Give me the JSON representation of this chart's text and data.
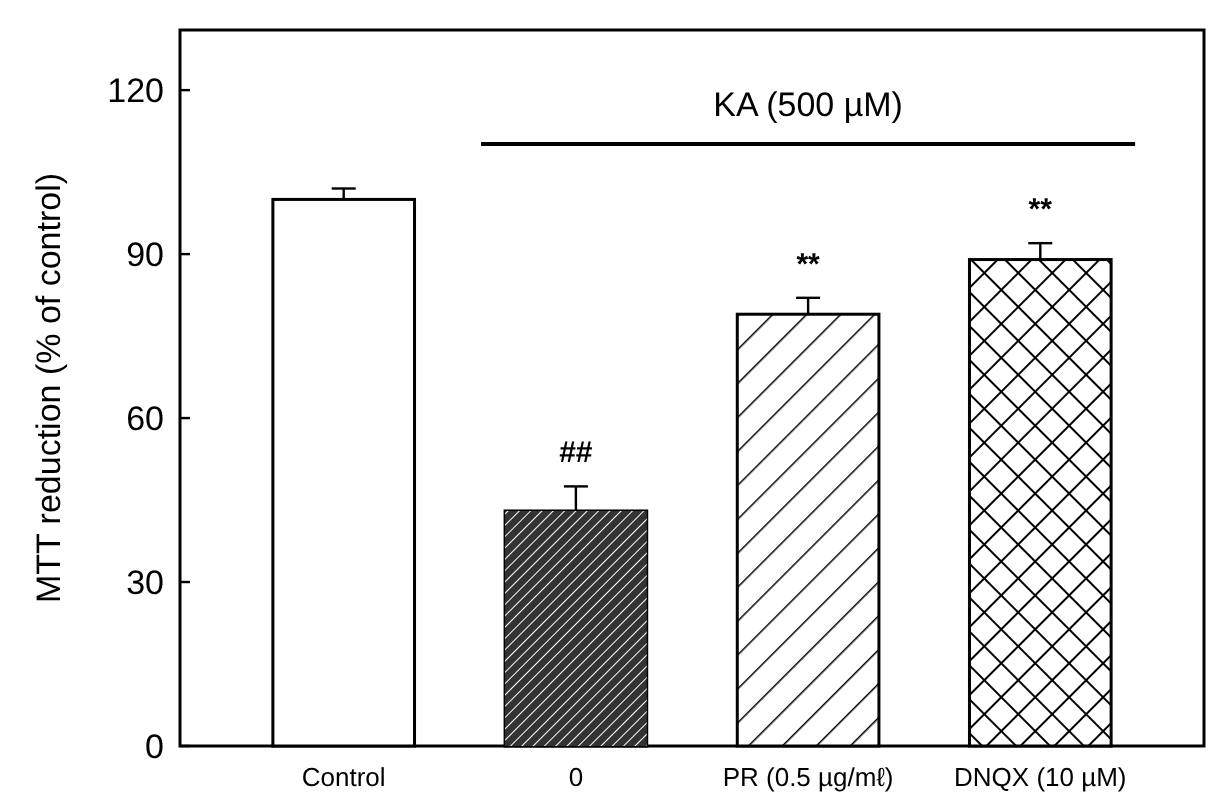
{
  "chart_data": {
    "type": "bar",
    "ylabel": "MTT reduction (% of control)",
    "categories": [
      "Control",
      "0",
      "PR (0.5 µg/mℓ)",
      "DNQX (10 µM)"
    ],
    "values": [
      100,
      43,
      79,
      89
    ],
    "errors": [
      [
        100,
        102
      ],
      [
        43,
        47.5
      ],
      [
        79,
        82
      ],
      [
        89,
        92
      ]
    ],
    "colors": [
      "#ffffff",
      "#333333",
      "#ffffff",
      "#ffffff"
    ],
    "ylim": [
      0,
      131
    ],
    "yticks": [
      0,
      30,
      60,
      90,
      120
    ],
    "grid": false,
    "annotations": [
      "KA (500 µM)",
      "##",
      "**",
      "**"
    ]
  }
}
